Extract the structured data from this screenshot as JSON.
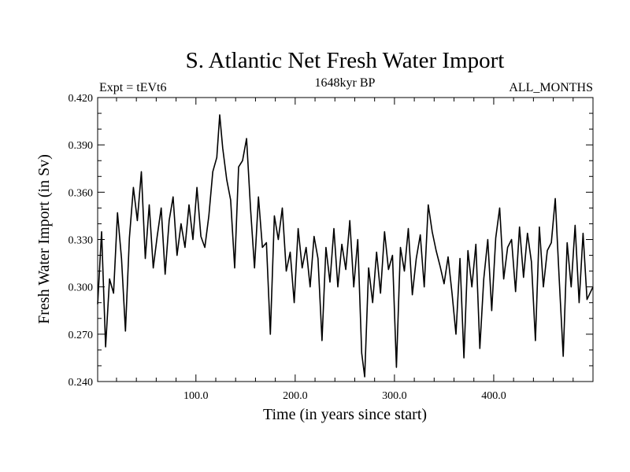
{
  "chart_data": {
    "type": "line",
    "title": "S. Atlantic Net Fresh Water Import",
    "subtitle": "1648kyr BP",
    "left_label": "Expt = tEVt6",
    "right_label": "ALL_MONTHS",
    "xlabel": "Time (in years since start)",
    "ylabel": "Fresh Water Import (in Sv)",
    "xlim": [
      1,
      500
    ],
    "ylim": [
      0.24,
      0.42
    ],
    "x_ticks": [
      100,
      200,
      300,
      400
    ],
    "x_tick_labels": [
      "100.0",
      "200.0",
      "300.0",
      "400.0"
    ],
    "y_ticks": [
      0.24,
      0.27,
      0.3,
      0.33,
      0.36,
      0.39,
      0.42
    ],
    "y_tick_labels": [
      "0.240",
      "0.270",
      "0.300",
      "0.330",
      "0.360",
      "0.390",
      "0.420"
    ],
    "grid": false,
    "series": [
      {
        "name": "Net Fresh Water Import",
        "color": "#000000",
        "x": [
          1,
          5,
          9,
          13,
          17,
          21,
          25,
          29,
          33,
          37,
          41,
          45,
          49,
          53,
          57,
          61,
          65,
          69,
          73,
          77,
          81,
          85,
          89,
          93,
          97,
          101,
          105,
          109,
          113,
          117,
          121,
          124,
          127,
          131,
          135,
          139,
          143,
          147,
          151,
          155,
          159,
          163,
          167,
          171,
          175,
          179,
          183,
          187,
          191,
          195,
          199,
          203,
          207,
          211,
          215,
          219,
          223,
          227,
          231,
          235,
          239,
          243,
          247,
          251,
          255,
          259,
          263,
          267,
          270,
          274,
          278,
          282,
          286,
          290,
          294,
          298,
          302,
          306,
          310,
          314,
          318,
          322,
          326,
          330,
          334,
          338,
          342,
          346,
          350,
          354,
          358,
          362,
          366,
          370,
          374,
          378,
          382,
          386,
          390,
          394,
          398,
          402,
          406,
          410,
          414,
          418,
          422,
          426,
          430,
          434,
          438,
          442,
          446,
          450,
          454,
          458,
          462,
          466,
          470,
          474,
          478,
          482,
          486,
          490,
          494,
          500
        ],
        "values": [
          0.289,
          0.335,
          0.262,
          0.305,
          0.296,
          0.347,
          0.318,
          0.272,
          0.331,
          0.363,
          0.342,
          0.373,
          0.318,
          0.352,
          0.312,
          0.332,
          0.35,
          0.308,
          0.342,
          0.357,
          0.32,
          0.34,
          0.325,
          0.352,
          0.33,
          0.363,
          0.332,
          0.325,
          0.345,
          0.373,
          0.382,
          0.409,
          0.388,
          0.368,
          0.355,
          0.312,
          0.376,
          0.38,
          0.394,
          0.35,
          0.312,
          0.357,
          0.325,
          0.328,
          0.27,
          0.345,
          0.33,
          0.35,
          0.31,
          0.322,
          0.29,
          0.337,
          0.312,
          0.325,
          0.3,
          0.332,
          0.318,
          0.266,
          0.325,
          0.303,
          0.337,
          0.3,
          0.327,
          0.311,
          0.342,
          0.3,
          0.33,
          0.258,
          0.243,
          0.312,
          0.29,
          0.322,
          0.296,
          0.335,
          0.311,
          0.32,
          0.249,
          0.325,
          0.31,
          0.337,
          0.295,
          0.318,
          0.333,
          0.3,
          0.352,
          0.335,
          0.323,
          0.313,
          0.302,
          0.319,
          0.296,
          0.27,
          0.318,
          0.255,
          0.323,
          0.3,
          0.327,
          0.261,
          0.305,
          0.33,
          0.285,
          0.331,
          0.35,
          0.305,
          0.325,
          0.33,
          0.297,
          0.338,
          0.306,
          0.334,
          0.316,
          0.266,
          0.338,
          0.3,
          0.323,
          0.328,
          0.356,
          0.305,
          0.256,
          0.328,
          0.3,
          0.339,
          0.29,
          0.334,
          0.292,
          0.3
        ]
      }
    ]
  }
}
